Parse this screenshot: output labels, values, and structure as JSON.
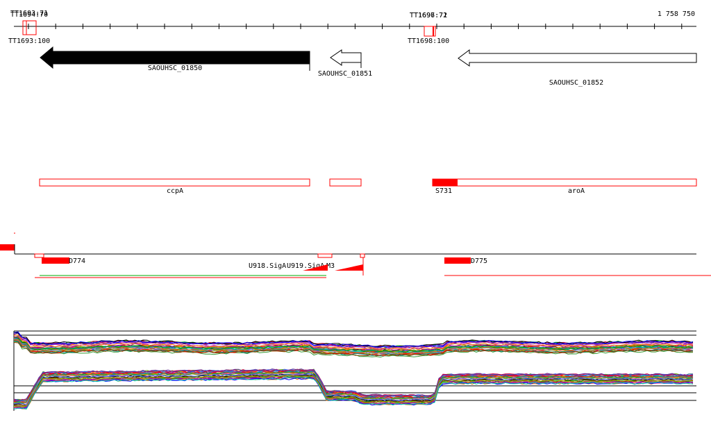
{
  "ruler": {
    "end_label": "1 758 750",
    "terminator_labels_top": [
      {
        "text": "TT1693:71"
      },
      {
        "text": "TT1694:70"
      },
      {
        "text": "TT1696:71"
      },
      {
        "text": "TT1697:72"
      }
    ],
    "terminator_labels_bottom": [
      {
        "text": "TT1693:100"
      },
      {
        "text": "TT1698:100"
      }
    ]
  },
  "genes": [
    {
      "locus": "SAOUHSC_01850",
      "strand": "minus",
      "filled": true
    },
    {
      "locus": "SAOUHSC_01851",
      "strand": "minus",
      "filled": false
    },
    {
      "locus": "SAOUHSC_01852",
      "strand": "minus",
      "filled": false
    }
  ],
  "annotations": [
    {
      "name": "ccpA"
    },
    {
      "name": "aroA",
      "marker": "S731"
    }
  ],
  "transcripts": [
    {
      "label": "D774"
    },
    {
      "label": "U918.SigA"
    },
    {
      "label": "U919.SigA"
    },
    {
      "label": "M3"
    },
    {
      "label": "D775"
    }
  ],
  "colors": {
    "feature_red": "#ff0000",
    "gene_filled": "#000000",
    "axis": "#000000",
    "green_line": "#00aa00"
  },
  "expression": {
    "tracks": 2,
    "description_visible": false
  }
}
